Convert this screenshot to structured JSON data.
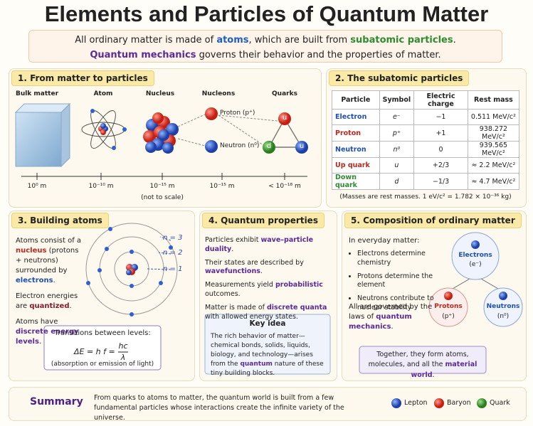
{
  "title": "Elements and Particles of Quantum Matter",
  "intro": {
    "line1": [
      "All ordinary matter is made of ",
      "atoms",
      ", which are built from ",
      "subatomic particles",
      "."
    ],
    "line2": [
      "Quantum mechanics",
      " governs their behavior and the properties of matter."
    ]
  },
  "section1": {
    "title": "1. From matter to particles",
    "columns": [
      "Bulk matter",
      "Atom",
      "Nucleus",
      "Nucleons",
      "Quarks"
    ],
    "nucleons": [
      "Proton (p⁺)",
      "Neutron (n⁰)"
    ],
    "quarks": [
      "u",
      "d",
      "u"
    ],
    "scale": [
      "10⁰ m",
      "10⁻¹⁰ m",
      "10⁻¹⁵ m",
      "10⁻¹⁵ m",
      "< 10⁻¹⁸ m"
    ],
    "note": "(not to scale)"
  },
  "section2": {
    "title": "2. The subatomic particles",
    "header": [
      "Particle",
      "Symbol",
      "Electric charge",
      "Rest mass"
    ],
    "rows": [
      [
        "Electron",
        "e⁻",
        "−1",
        "0.511 MeV/c²"
      ],
      [
        "Proton",
        "p⁺",
        "+1",
        "938.272 MeV/c²"
      ],
      [
        "Neutron",
        "n⁰",
        "0",
        "939.565 MeV/c²"
      ],
      [
        "Up quark",
        "u",
        "+2/3",
        "≈ 2.2 MeV/c²"
      ],
      [
        "Down quark",
        "d",
        "−1/3",
        "≈ 4.7 MeV/c²"
      ]
    ],
    "note": "(Masses are rest masses. 1 eV/c² = 1.782 × 10⁻³⁶ kg)"
  },
  "section3": {
    "title": "3. Building atoms",
    "paragraphs": [
      [
        "Atoms consist of a ",
        "nucleus",
        " (protons + neutrons) surrounded by ",
        "electrons",
        "."
      ],
      [
        "Electron energies are ",
        "quantized",
        "."
      ],
      [
        "Atoms have ",
        "discrete energy levels",
        "."
      ]
    ],
    "levels": [
      "n = 3",
      "n = 2",
      "n = 1"
    ],
    "box": {
      "title": "Transitions between levels:",
      "formula": "ΔE = h f =",
      "numerator": "hc",
      "denominator": "λ",
      "note": "(absorption or emission of light)"
    }
  },
  "section4": {
    "title": "4. Quantum properties",
    "bullets": [
      [
        "Particles exhibit ",
        "wave–particle duality",
        "."
      ],
      [
        "Their states are described by ",
        "wavefunctions",
        "."
      ],
      [
        "Measurements yield ",
        "probabilistic",
        " outcomes."
      ],
      [
        "Matter is made of ",
        "discrete quanta",
        " with allowed energy states."
      ]
    ],
    "key_idea": {
      "title": "Key idea",
      "text": [
        "The rich behavior of matter—chemical bonds, solids, liquids, biology, and technology—arises from the ",
        "quantum",
        " nature of these tiny building blocks."
      ]
    }
  },
  "section5": {
    "title": "5. Composition of ordinary matter",
    "lead": "In everyday matter:",
    "bullets": [
      "Electrons determine chemistry",
      "Protons determine the element",
      "Neutrons contribute to nuclear stability"
    ],
    "conclusion": [
      "All are governed by the laws of ",
      "quantum mechanics",
      "."
    ],
    "nodes": [
      {
        "label": "Electrons",
        "symbol": "(e⁻)"
      },
      {
        "label": "Protons",
        "symbol": "(p⁺)"
      },
      {
        "label": "Neutrons",
        "symbol": "(n⁰)"
      }
    ],
    "footer": [
      "Together, they form atoms, molecules, and all the ",
      "material world",
      "."
    ]
  },
  "summary": {
    "label": "Summary",
    "text": "From quarks to atoms to matter, the quantum world is built from a few fundamental particles whose interactions create the infinite variety of the universe.",
    "legend": [
      "Lepton",
      "Baryon",
      "Quark"
    ]
  }
}
